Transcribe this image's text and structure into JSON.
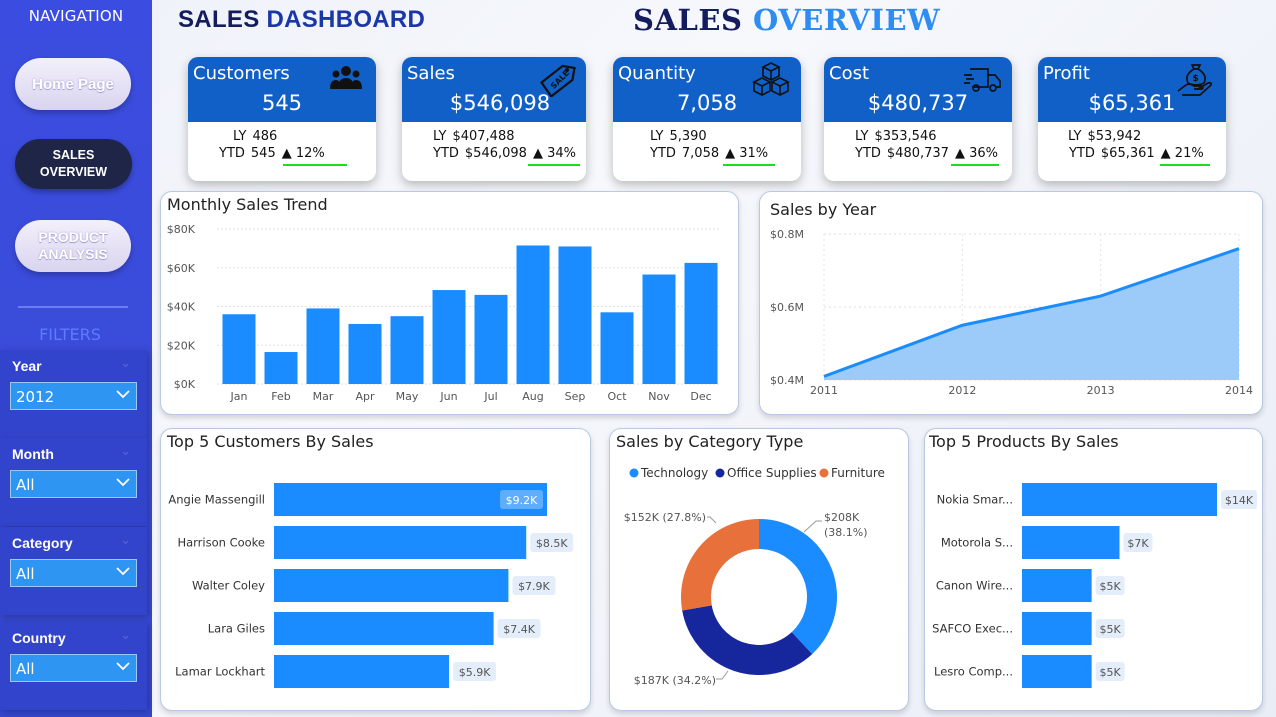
{
  "sidebar": {
    "nav_title": "NAVIGATION",
    "home": "Home Page",
    "sales_line1": "SALES",
    "sales_line2": "OVERVIEW",
    "product_line1": "PRODUCT",
    "product_line2": "ANALYSIS",
    "filters_title": "FILTERS",
    "filters": [
      {
        "label": "Year",
        "value": "2012"
      },
      {
        "label": "Month",
        "value": "All"
      },
      {
        "label": "Category",
        "value": "All"
      },
      {
        "label": "Country",
        "value": "All"
      }
    ]
  },
  "header": {
    "dash_part1": "SALES",
    "dash_part2": "DASHBOARD",
    "overview_part1": "SALES",
    "overview_part2": "OVERVIEW"
  },
  "kpis": [
    {
      "name": "Customers",
      "value": "545",
      "ly_label": "LY",
      "ly": "486",
      "ytd_label": "YTD",
      "ytd": "545",
      "pct": "▲ 12%",
      "icon": "people-icon"
    },
    {
      "name": "Sales",
      "value": "$546,098",
      "ly_label": "LY",
      "ly": "$407,488",
      "ytd_label": "YTD",
      "ytd": "$546,098",
      "pct": "▲ 34%",
      "icon": "sale-tag-icon"
    },
    {
      "name": "Quantity",
      "value": "7,058",
      "ly_label": "LY",
      "ly": "5,390",
      "ytd_label": "YTD",
      "ytd": "7,058",
      "pct": "▲ 31%",
      "icon": "boxes-icon"
    },
    {
      "name": "Cost",
      "value": "$480,737",
      "ly_label": "LY",
      "ly": "$353,546",
      "ytd_label": "YTD",
      "ytd": "$480,737",
      "pct": "▲ 36%",
      "icon": "delivery-truck-icon"
    },
    {
      "name": "Profit",
      "value": "$65,361",
      "ly_label": "LY",
      "ly": "$53,942",
      "ytd_label": "YTD",
      "ytd": "$65,361",
      "pct": "▲ 21%",
      "icon": "money-hand-icon"
    }
  ],
  "colors": {
    "accent": "#1a8cff",
    "kpi_header": "#1160c8",
    "sidebar": "#3b4de0",
    "navy": "#141c5e",
    "orange": "#e8703a",
    "dark_blue": "#16279e",
    "growth": "#15e21a"
  },
  "chart_data": [
    {
      "type": "bar",
      "title": "Monthly Sales Trend",
      "categories": [
        "Jan",
        "Feb",
        "Mar",
        "Apr",
        "May",
        "Jun",
        "Jul",
        "Aug",
        "Sep",
        "Oct",
        "Nov",
        "Dec"
      ],
      "values": [
        36000,
        16500,
        39000,
        31000,
        35000,
        48500,
        46000,
        71500,
        71000,
        37000,
        56500,
        62500
      ],
      "yticks": [
        "$0K",
        "$20K",
        "$40K",
        "$60K",
        "$80K"
      ],
      "ylim": [
        0,
        80000
      ],
      "grid": true
    },
    {
      "type": "area",
      "title": "Sales by Year",
      "x": [
        "2011",
        "2012",
        "2013",
        "2014"
      ],
      "values": [
        0.41,
        0.55,
        0.63,
        0.76
      ],
      "yticks": [
        "$0.4M",
        "$0.6M",
        "$0.8M"
      ],
      "ylim": [
        0.4,
        0.8
      ],
      "grid": true
    },
    {
      "type": "bar",
      "orientation": "horizontal",
      "title": "Top 5 Customers By Sales",
      "categories": [
        "Angie Massengill",
        "Harrison Cooke",
        "Walter Coley",
        "Lara Giles",
        "Lamar Lockhart"
      ],
      "values": [
        9.2,
        8.5,
        7.9,
        7.4,
        5.9
      ],
      "labels": [
        "$9.2K",
        "$8.5K",
        "$7.9K",
        "$7.4K",
        "$5.9K"
      ]
    },
    {
      "type": "pie",
      "subtype": "donut",
      "title": "Sales by Category Type",
      "legend": [
        "Technology",
        "Office Supplies",
        "Furniture"
      ],
      "values": [
        38.1,
        34.2,
        27.8
      ],
      "labels": [
        "$208K\n(38.1%)",
        "$187K (34.2%)",
        "$152K (27.8%)"
      ],
      "legend_position": "top"
    },
    {
      "type": "bar",
      "orientation": "horizontal",
      "title": "Top 5 Products By Sales",
      "categories": [
        "Nokia Smar...",
        "Motorola S...",
        "Canon Wire...",
        "SAFCO Exec...",
        "Lesro Comp..."
      ],
      "values": [
        14,
        7,
        5,
        5,
        5
      ],
      "labels": [
        "$14K",
        "$7K",
        "$5K",
        "$5K",
        "$5K"
      ]
    }
  ]
}
